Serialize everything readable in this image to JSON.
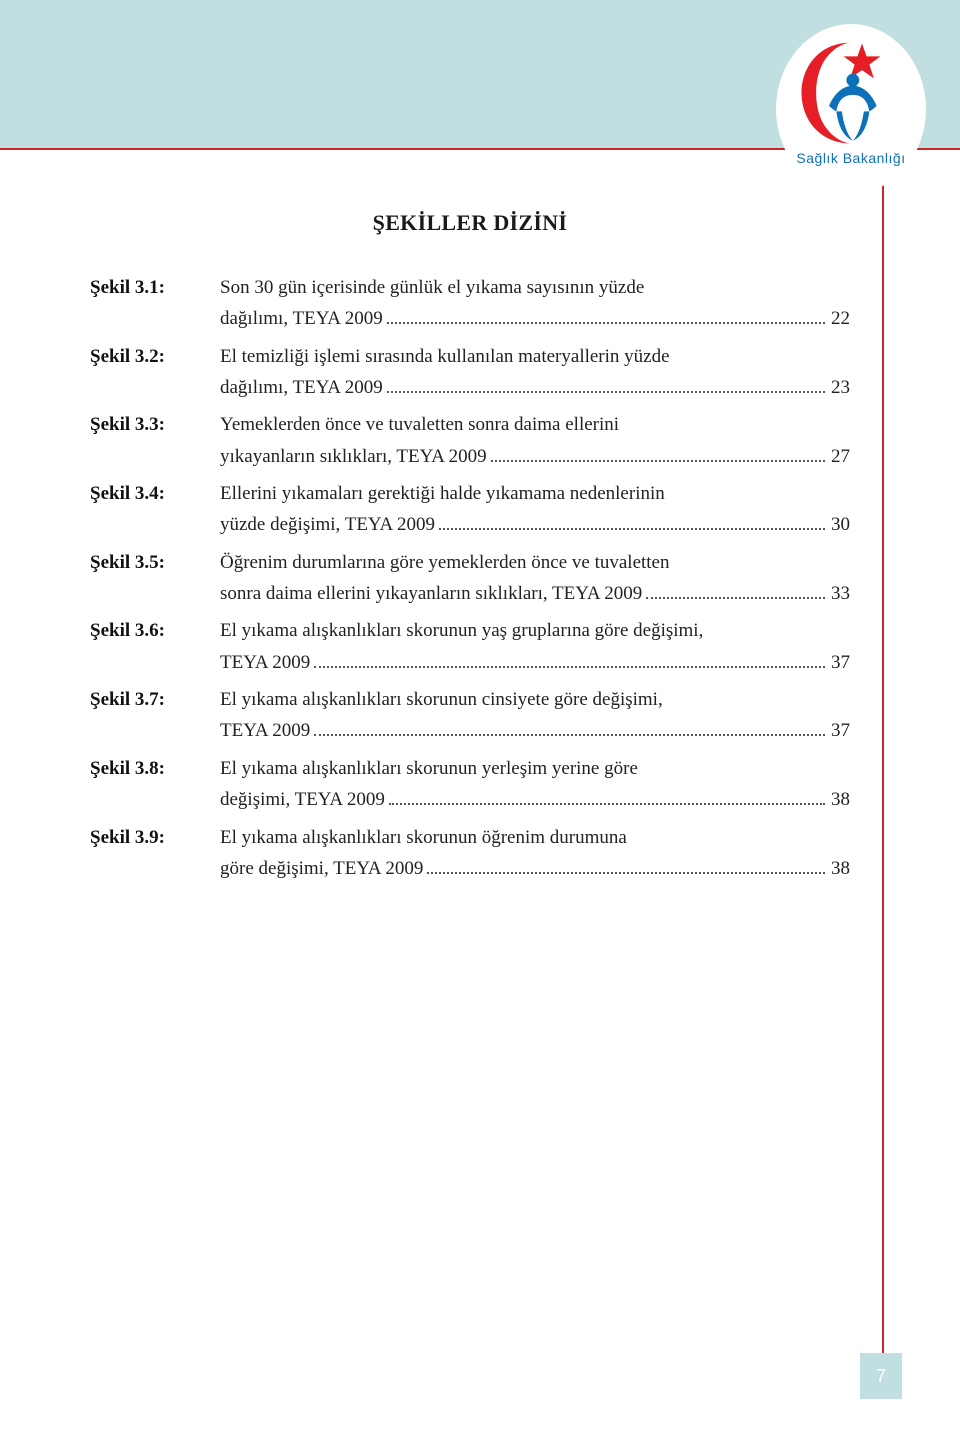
{
  "header": {
    "band_color": "#c1dee0",
    "rule_color": "#c62828",
    "logo_text": "Sağlık Bakanlığı",
    "logo_text_color": "#0d71b9",
    "logo_star_color": "#e61e25",
    "logo_figure_color": "#0d71b9",
    "logo_crescent_color": "#e61e25"
  },
  "title": "ŞEKİLLER DİZİNİ",
  "toc": [
    {
      "label": "Şekil 3.1:",
      "lines": [
        "Son 30 gün içerisinde günlük el yıkama sayısının yüzde"
      ],
      "last": "dağılımı, TEYA  2009",
      "page": "22"
    },
    {
      "label": "Şekil 3.2:",
      "lines": [
        "El temizliği işlemi sırasında kullanılan materyallerin yüzde"
      ],
      "last": "dağılımı, TEYA 2009",
      "page": "23"
    },
    {
      "label": "Şekil 3.3:",
      "lines": [
        "Yemeklerden önce ve tuvaletten sonra daima ellerini"
      ],
      "last": "yıkayanların sıklıkları, TEYA  2009",
      "page": "27"
    },
    {
      "label": "Şekil 3.4:",
      "lines": [
        "Ellerini yıkamaları gerektiği halde yıkamama nedenlerinin"
      ],
      "last": "yüzde değişimi, TEYA 2009",
      "page": "30"
    },
    {
      "label": "Şekil 3.5:",
      "lines": [
        "Öğrenim durumlarına göre yemeklerden önce ve tuvaletten"
      ],
      "last": "sonra daima  ellerini yıkayanların sıklıkları, TEYA 2009",
      "page": "33"
    },
    {
      "label": "Şekil 3.6:",
      "lines": [
        "El yıkama alışkanlıkları skorunun yaş gruplarına göre değişimi,"
      ],
      "last": "TEYA 2009",
      "page": "37"
    },
    {
      "label": "Şekil 3.7:",
      "lines": [
        "El yıkama alışkanlıkları skorunun cinsiyete göre değişimi,"
      ],
      "last": "TEYA 2009",
      "page": "37"
    },
    {
      "label": "Şekil 3.8:",
      "lines": [
        "El yıkama alışkanlıkları skorunun yerleşim yerine göre"
      ],
      "last": "değişimi, TEYA 2009",
      "page": "38"
    },
    {
      "label": "Şekil 3.9:",
      "lines": [
        "El yıkama alışkanlıkları skorunun öğrenim durumuna"
      ],
      "last": "göre değişimi, TEYA 2009",
      "page": "38"
    }
  ],
  "page_number": "7",
  "page_number_bg": "#c1dee0",
  "page_number_color": "#ffffff"
}
